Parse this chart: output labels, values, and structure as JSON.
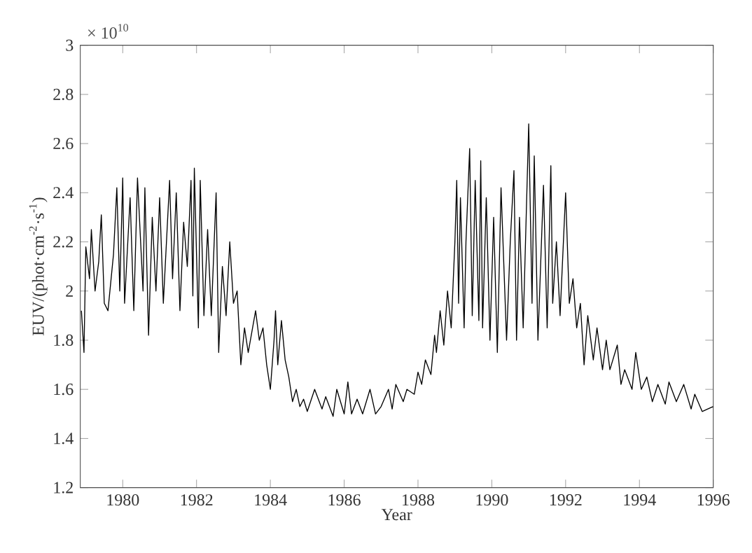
{
  "chart_data": {
    "type": "line",
    "xlabel": "Year",
    "ylabel": "EUV/(phot·cm$^{-2}$·s$^{-1}$)",
    "annotations": [
      "× 10$^{10}$"
    ],
    "xlim": [
      1978.85,
      1996
    ],
    "xticks": [
      1980,
      1982,
      1984,
      1986,
      1988,
      1990,
      1992,
      1994,
      1996
    ],
    "ylim": [
      1.2,
      3
    ],
    "yticks": [
      1.2,
      1.4,
      1.6,
      1.8,
      2,
      2.2,
      2.4,
      2.6,
      2.8,
      3
    ],
    "grid": false,
    "series": [
      {
        "color": "#000000",
        "x": [
          1978.88,
          1978.95,
          1979.0,
          1979.1,
          1979.15,
          1979.25,
          1979.35,
          1979.42,
          1979.5,
          1979.6,
          1979.75,
          1979.84,
          1979.92,
          1980.0,
          1980.05,
          1980.2,
          1980.3,
          1980.4,
          1980.55,
          1980.6,
          1980.7,
          1980.8,
          1980.9,
          1981.0,
          1981.1,
          1981.27,
          1981.35,
          1981.45,
          1981.55,
          1981.65,
          1981.75,
          1981.85,
          1981.9,
          1981.94,
          1982.05,
          1982.1,
          1982.2,
          1982.3,
          1982.4,
          1982.53,
          1982.6,
          1982.7,
          1982.8,
          1982.9,
          1983.0,
          1983.1,
          1983.2,
          1983.3,
          1983.4,
          1983.6,
          1983.7,
          1983.8,
          1983.9,
          1984.0,
          1984.1,
          1984.14,
          1984.2,
          1984.3,
          1984.4,
          1984.5,
          1984.6,
          1984.7,
          1984.8,
          1984.9,
          1985.0,
          1985.2,
          1985.4,
          1985.5,
          1985.7,
          1985.8,
          1986.0,
          1986.1,
          1986.2,
          1986.35,
          1986.5,
          1986.7,
          1986.85,
          1987.0,
          1987.2,
          1987.3,
          1987.4,
          1987.6,
          1987.7,
          1987.9,
          1988.0,
          1988.1,
          1988.2,
          1988.35,
          1988.45,
          1988.5,
          1988.6,
          1988.7,
          1988.8,
          1988.9,
          1989.0,
          1989.05,
          1989.1,
          1989.15,
          1989.25,
          1989.3,
          1989.4,
          1989.47,
          1989.55,
          1989.65,
          1989.7,
          1989.75,
          1989.85,
          1989.95,
          1990.05,
          1990.15,
          1990.25,
          1990.4,
          1990.5,
          1990.6,
          1990.67,
          1990.75,
          1990.85,
          1991.0,
          1991.09,
          1991.15,
          1991.25,
          1991.4,
          1991.5,
          1991.6,
          1991.65,
          1991.75,
          1991.85,
          1992.0,
          1992.1,
          1992.2,
          1992.3,
          1992.4,
          1992.5,
          1992.6,
          1992.75,
          1992.85,
          1993.0,
          1993.1,
          1993.2,
          1993.4,
          1993.5,
          1993.6,
          1993.8,
          1993.9,
          1994.05,
          1994.2,
          1994.35,
          1994.5,
          1994.7,
          1994.8,
          1995.0,
          1995.2,
          1995.4,
          1995.5,
          1995.7,
          1996.0
        ],
        "values": [
          1.92,
          1.75,
          2.18,
          2.05,
          2.25,
          2.0,
          2.12,
          2.31,
          1.95,
          1.92,
          2.15,
          2.42,
          2.0,
          2.46,
          1.95,
          2.38,
          1.92,
          2.46,
          2.0,
          2.42,
          1.82,
          2.3,
          2.0,
          2.38,
          1.95,
          2.45,
          2.05,
          2.4,
          1.92,
          2.28,
          2.1,
          2.45,
          1.98,
          2.5,
          1.85,
          2.45,
          1.9,
          2.25,
          1.9,
          2.4,
          1.75,
          2.1,
          1.9,
          2.2,
          1.95,
          2.0,
          1.7,
          1.85,
          1.75,
          1.92,
          1.8,
          1.85,
          1.7,
          1.6,
          1.8,
          1.92,
          1.7,
          1.88,
          1.72,
          1.65,
          1.55,
          1.6,
          1.53,
          1.56,
          1.51,
          1.6,
          1.52,
          1.57,
          1.49,
          1.6,
          1.5,
          1.63,
          1.5,
          1.56,
          1.5,
          1.6,
          1.5,
          1.53,
          1.6,
          1.52,
          1.62,
          1.55,
          1.6,
          1.58,
          1.67,
          1.62,
          1.72,
          1.66,
          1.82,
          1.75,
          1.92,
          1.78,
          2.0,
          1.85,
          2.2,
          2.45,
          1.95,
          2.38,
          1.85,
          2.2,
          2.58,
          1.9,
          2.45,
          1.88,
          2.53,
          1.85,
          2.38,
          1.8,
          2.3,
          1.75,
          2.42,
          1.8,
          2.2,
          2.49,
          1.8,
          2.3,
          1.85,
          2.68,
          1.95,
          2.55,
          1.8,
          2.43,
          1.85,
          2.51,
          1.95,
          2.2,
          1.9,
          2.4,
          1.95,
          2.05,
          1.85,
          1.95,
          1.7,
          1.9,
          1.72,
          1.85,
          1.68,
          1.8,
          1.68,
          1.78,
          1.62,
          1.68,
          1.6,
          1.75,
          1.6,
          1.65,
          1.55,
          1.62,
          1.54,
          1.63,
          1.55,
          1.62,
          1.52,
          1.58,
          1.51,
          1.53
        ]
      }
    ]
  }
}
